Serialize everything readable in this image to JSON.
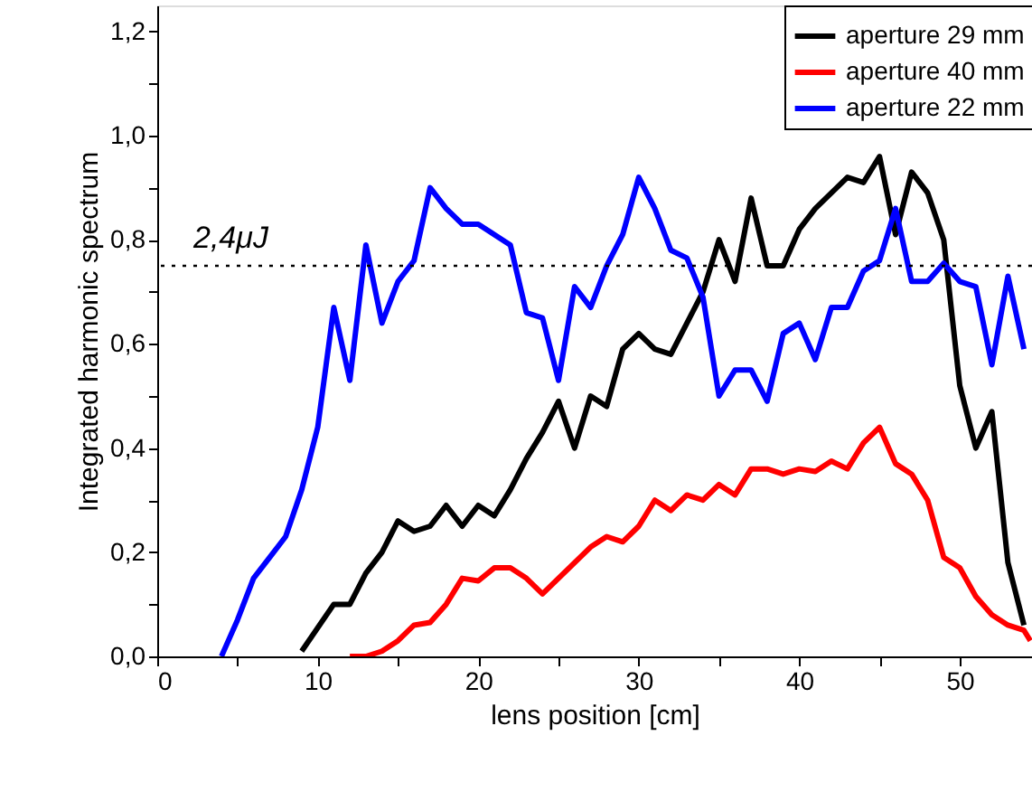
{
  "chart_data": {
    "type": "line",
    "xlabel": "lens position [cm]",
    "ylabel": "Integrated harmonic spectrum",
    "xlim": [
      0,
      54.5
    ],
    "ylim": [
      0,
      1.25
    ],
    "xticks": [
      0,
      {
        "value": 5,
        "label": null
      },
      10,
      {
        "value": 15,
        "label": null
      },
      20,
      {
        "value": 25,
        "label": null
      },
      30,
      {
        "value": 35,
        "label": null
      },
      40,
      {
        "value": 45,
        "label": null
      },
      50
    ],
    "yticks": [
      {
        "value": 0,
        "label": "0,0"
      },
      {
        "value": 0.1,
        "label": null
      },
      {
        "value": 0.2,
        "label": "0,2"
      },
      {
        "value": 0.3,
        "label": null
      },
      {
        "value": 0.4,
        "label": "0,4"
      },
      {
        "value": 0.5,
        "label": null
      },
      {
        "value": 0.6,
        "label": "0,6"
      },
      {
        "value": 0.7,
        "label": null
      },
      {
        "value": 0.8,
        "label": "0,8"
      },
      {
        "value": 0.9,
        "label": null
      },
      {
        "value": 1.0,
        "label": "1,0"
      },
      {
        "value": 1.1,
        "label": null
      },
      {
        "value": 1.2,
        "label": "1,2"
      }
    ],
    "grid": false,
    "legend": "top right",
    "marker": "none",
    "line_style": "solid",
    "ref_lines": [
      {
        "axis": "y",
        "value": 0.75,
        "label": "2,4μJ",
        "color": "#000000",
        "line_style": "dotted"
      }
    ],
    "series": [
      {
        "name": "aperture 29 mm",
        "color": "#000000",
        "x": [
          9,
          11,
          12,
          13,
          14,
          15,
          16,
          17,
          18,
          19,
          20,
          21,
          22,
          23,
          24,
          25,
          26,
          27,
          28,
          29,
          30,
          31,
          32,
          33,
          34,
          35,
          36,
          37,
          38,
          39,
          40,
          41,
          42,
          43,
          44,
          45,
          46,
          47,
          48,
          49,
          50,
          51,
          52,
          53,
          54
        ],
        "values": [
          0.01,
          0.1,
          0.1,
          0.16,
          0.2,
          0.26,
          0.24,
          0.25,
          0.29,
          0.25,
          0.29,
          0.27,
          0.32,
          0.38,
          0.43,
          0.49,
          0.4,
          0.5,
          0.48,
          0.59,
          0.62,
          0.59,
          0.58,
          0.64,
          0.7,
          0.8,
          0.72,
          0.88,
          0.75,
          0.75,
          0.82,
          0.86,
          0.89,
          0.92,
          0.91,
          0.96,
          0.81,
          0.93,
          0.89,
          0.8,
          0.52,
          0.4,
          0.47,
          0.18,
          0.06
        ]
      },
      {
        "name": "aperture 40 mm",
        "color": "#ff0000",
        "x": [
          12,
          13,
          14,
          15,
          16,
          17,
          18,
          19,
          20,
          21,
          22,
          23,
          24,
          25,
          26,
          27,
          28,
          29,
          30,
          31,
          32,
          33,
          34,
          35,
          36,
          37,
          38,
          39,
          40,
          41,
          42,
          43,
          44,
          45,
          46,
          47,
          48,
          49,
          50,
          51,
          52,
          53,
          54,
          54.4
        ],
        "values": [
          0,
          0.0,
          0.01,
          0.03,
          0.06,
          0.065,
          0.1,
          0.15,
          0.145,
          0.17,
          0.17,
          0.15,
          0.12,
          0.15,
          0.18,
          0.21,
          0.23,
          0.22,
          0.25,
          0.3,
          0.28,
          0.31,
          0.3,
          0.33,
          0.31,
          0.36,
          0.36,
          0.35,
          0.36,
          0.355,
          0.375,
          0.36,
          0.41,
          0.44,
          0.37,
          0.35,
          0.3,
          0.19,
          0.17,
          0.115,
          0.08,
          0.06,
          0.05,
          0.03
        ]
      },
      {
        "name": "aperture 22 mm",
        "color": "#0000ff",
        "x": [
          4,
          5,
          6,
          7,
          8,
          9,
          10,
          11,
          12,
          13,
          14,
          15,
          16,
          17,
          18,
          19,
          20,
          21,
          22,
          23,
          24,
          25,
          26,
          27,
          28,
          29,
          30,
          31,
          32,
          33,
          34,
          35,
          36,
          37,
          38,
          39,
          40,
          41,
          42,
          43,
          44,
          45,
          46,
          47,
          48,
          49,
          50,
          51,
          52,
          53,
          54
        ],
        "values": [
          0,
          0.07,
          0.15,
          0.19,
          0.23,
          0.32,
          0.44,
          0.67,
          0.53,
          0.79,
          0.64,
          0.72,
          0.76,
          0.9,
          0.86,
          0.83,
          0.83,
          0.81,
          0.79,
          0.66,
          0.65,
          0.53,
          0.71,
          0.67,
          0.75,
          0.81,
          0.92,
          0.86,
          0.78,
          0.765,
          0.69,
          0.5,
          0.55,
          0.55,
          0.49,
          0.62,
          0.64,
          0.57,
          0.67,
          0.67,
          0.74,
          0.76,
          0.86,
          0.72,
          0.72,
          0.755,
          0.72,
          0.71,
          0.56,
          0.73,
          0.59
        ]
      }
    ]
  }
}
